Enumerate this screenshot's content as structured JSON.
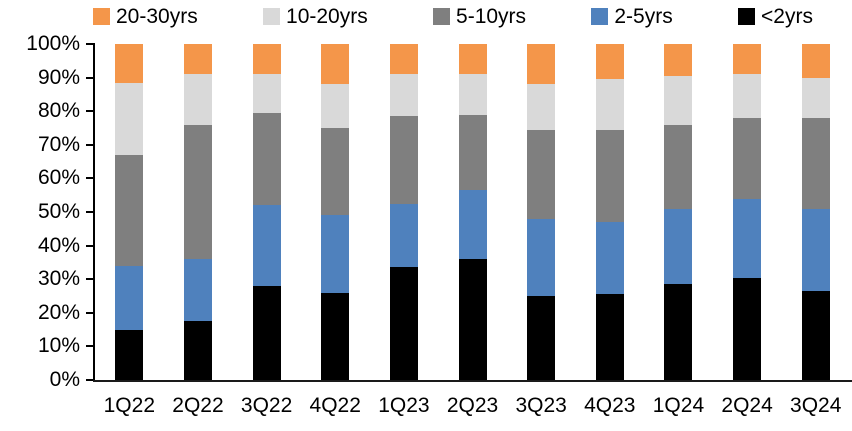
{
  "chart_data": {
    "type": "bar",
    "stacked": true,
    "units": "percent",
    "title": "",
    "xlabel": "",
    "ylabel": "",
    "ylim": [
      0,
      100
    ],
    "grid": false,
    "legend_position": "top",
    "legend_order": [
      "20-30yrs",
      "10-20yrs",
      "5-10yrs",
      "2-5yrs",
      "<2yrs"
    ],
    "categories": [
      "1Q22",
      "2Q22",
      "3Q22",
      "4Q22",
      "1Q23",
      "2Q23",
      "3Q23",
      "4Q23",
      "1Q24",
      "2Q24",
      "3Q24"
    ],
    "series": [
      {
        "name": "<2yrs",
        "color": "#000000",
        "values": [
          15,
          17.5,
          28,
          26,
          33.5,
          36,
          25,
          25.5,
          28.5,
          30.5,
          26.5
        ]
      },
      {
        "name": "2-5yrs",
        "color": "#4F81BD",
        "values": [
          19,
          18.5,
          24,
          23,
          19,
          20.5,
          23,
          21.5,
          22.5,
          23.5,
          24.5
        ]
      },
      {
        "name": "5-10yrs",
        "color": "#7F7F7F",
        "values": [
          33,
          40,
          27.5,
          26,
          26,
          22.5,
          26.5,
          27.5,
          25,
          24,
          27
        ]
      },
      {
        "name": "10-20yrs",
        "color": "#D9D9D9",
        "values": [
          21.5,
          15,
          11.5,
          13,
          12.5,
          12,
          13.5,
          15,
          14.5,
          13,
          12
        ]
      },
      {
        "name": "20-30yrs",
        "color": "#F4964A",
        "values": [
          11.5,
          9,
          9,
          12,
          9,
          9,
          12,
          10.5,
          9.5,
          9,
          10
        ]
      }
    ],
    "y_ticks": [
      "0%",
      "10%",
      "20%",
      "30%",
      "40%",
      "50%",
      "60%",
      "70%",
      "80%",
      "90%",
      "100%"
    ]
  },
  "colors": {
    "axis": "#000000",
    "background": "#FFFFFF"
  }
}
